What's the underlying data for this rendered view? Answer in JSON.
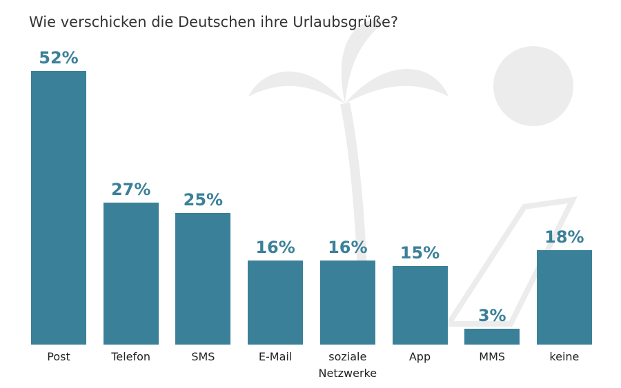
{
  "chart_data": {
    "type": "bar",
    "title": "Wie verschicken die Deutschen ihre Urlaubsgrüße?",
    "categories": [
      "Post",
      "Telefon",
      "SMS",
      "E-Mail",
      "soziale Netzwerke",
      "App",
      "MMS",
      "keine"
    ],
    "values": [
      52,
      27,
      25,
      16,
      16,
      15,
      3,
      18
    ],
    "value_labels": [
      "52%",
      "27%",
      "25%",
      "16%",
      "16%",
      "15%",
      "3%",
      "18%"
    ],
    "color": "#3b8099"
  }
}
